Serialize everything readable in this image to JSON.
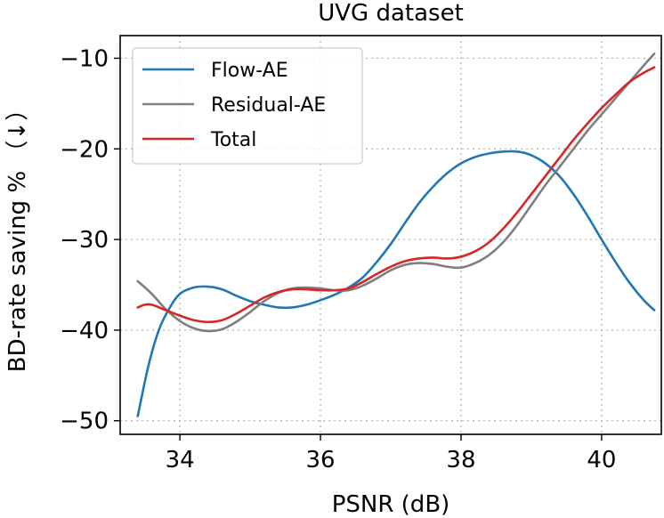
{
  "chart_data": {
    "type": "line",
    "title": "UVG dataset",
    "xlabel": "PSNR (dB)",
    "ylabel": "BD-rate saving % （↓）",
    "xlim": [
      33.15,
      40.85
    ],
    "ylim": [
      -51.5,
      -7.5
    ],
    "xticks": [
      34,
      36,
      38,
      40
    ],
    "yticks": [
      -10,
      -20,
      -30,
      -40,
      -50
    ],
    "xtick_labels": [
      "34",
      "36",
      "38",
      "40"
    ],
    "ytick_labels": [
      "−10",
      "−20",
      "−30",
      "−40",
      "−50"
    ],
    "grid": true,
    "legend_position": "top-left",
    "series": [
      {
        "name": "Flow-AE",
        "color": "#1f77b4",
        "points": [
          [
            33.4,
            -49.5
          ],
          [
            33.55,
            -44
          ],
          [
            33.7,
            -40
          ],
          [
            33.85,
            -37.6
          ],
          [
            34.0,
            -36.0
          ],
          [
            34.2,
            -35.3
          ],
          [
            34.4,
            -35.2
          ],
          [
            34.6,
            -35.5
          ],
          [
            34.8,
            -36.2
          ],
          [
            35.0,
            -36.8
          ],
          [
            35.2,
            -37.2
          ],
          [
            35.4,
            -37.5
          ],
          [
            35.6,
            -37.5
          ],
          [
            35.8,
            -37.2
          ],
          [
            36.0,
            -36.7
          ],
          [
            36.2,
            -36.1
          ],
          [
            36.4,
            -35.3
          ],
          [
            36.6,
            -34.2
          ],
          [
            36.8,
            -32.5
          ],
          [
            37.0,
            -30.5
          ],
          [
            37.2,
            -28.2
          ],
          [
            37.4,
            -26.0
          ],
          [
            37.6,
            -24.2
          ],
          [
            37.8,
            -22.7
          ],
          [
            38.0,
            -21.6
          ],
          [
            38.2,
            -20.9
          ],
          [
            38.4,
            -20.5
          ],
          [
            38.6,
            -20.3
          ],
          [
            38.8,
            -20.3
          ],
          [
            39.0,
            -20.7
          ],
          [
            39.2,
            -21.6
          ],
          [
            39.4,
            -23.0
          ],
          [
            39.6,
            -25.0
          ],
          [
            39.8,
            -27.4
          ],
          [
            40.0,
            -30.0
          ],
          [
            40.2,
            -32.5
          ],
          [
            40.4,
            -34.8
          ],
          [
            40.6,
            -36.7
          ],
          [
            40.75,
            -37.8
          ]
        ]
      },
      {
        "name": "Residual-AE",
        "color": "#7f7f7f",
        "points": [
          [
            33.4,
            -34.6
          ],
          [
            33.6,
            -36.0
          ],
          [
            33.8,
            -37.7
          ],
          [
            34.0,
            -39.0
          ],
          [
            34.2,
            -39.8
          ],
          [
            34.4,
            -40.1
          ],
          [
            34.6,
            -39.9
          ],
          [
            34.8,
            -39.1
          ],
          [
            35.0,
            -38.0
          ],
          [
            35.2,
            -36.8
          ],
          [
            35.4,
            -35.9
          ],
          [
            35.6,
            -35.4
          ],
          [
            35.8,
            -35.3
          ],
          [
            36.0,
            -35.4
          ],
          [
            36.2,
            -35.6
          ],
          [
            36.4,
            -35.6
          ],
          [
            36.6,
            -35.1
          ],
          [
            36.8,
            -34.3
          ],
          [
            37.0,
            -33.4
          ],
          [
            37.2,
            -32.8
          ],
          [
            37.4,
            -32.6
          ],
          [
            37.6,
            -32.7
          ],
          [
            37.8,
            -33.0
          ],
          [
            38.0,
            -33.1
          ],
          [
            38.2,
            -32.6
          ],
          [
            38.4,
            -31.7
          ],
          [
            38.6,
            -30.3
          ],
          [
            38.8,
            -28.4
          ],
          [
            39.0,
            -26.2
          ],
          [
            39.2,
            -24.0
          ],
          [
            39.4,
            -22.0
          ],
          [
            39.6,
            -20.0
          ],
          [
            39.8,
            -18.0
          ],
          [
            40.0,
            -16.2
          ],
          [
            40.2,
            -14.4
          ],
          [
            40.4,
            -12.6
          ],
          [
            40.6,
            -10.8
          ],
          [
            40.75,
            -9.5
          ]
        ]
      },
      {
        "name": "Total",
        "color": "#d62728",
        "points": [
          [
            33.4,
            -37.5
          ],
          [
            33.5,
            -37.2
          ],
          [
            33.6,
            -37.2
          ],
          [
            33.8,
            -37.8
          ],
          [
            34.0,
            -38.4
          ],
          [
            34.2,
            -38.9
          ],
          [
            34.4,
            -39.1
          ],
          [
            34.6,
            -38.9
          ],
          [
            34.8,
            -38.2
          ],
          [
            35.0,
            -37.3
          ],
          [
            35.2,
            -36.4
          ],
          [
            35.4,
            -35.8
          ],
          [
            35.6,
            -35.5
          ],
          [
            35.8,
            -35.5
          ],
          [
            36.0,
            -35.6
          ],
          [
            36.2,
            -35.6
          ],
          [
            36.4,
            -35.4
          ],
          [
            36.6,
            -34.7
          ],
          [
            36.8,
            -33.8
          ],
          [
            37.0,
            -33.0
          ],
          [
            37.2,
            -32.4
          ],
          [
            37.4,
            -32.1
          ],
          [
            37.6,
            -32.0
          ],
          [
            37.8,
            -32.1
          ],
          [
            38.0,
            -31.9
          ],
          [
            38.2,
            -31.3
          ],
          [
            38.4,
            -30.3
          ],
          [
            38.6,
            -28.8
          ],
          [
            38.8,
            -27.0
          ],
          [
            39.0,
            -25.0
          ],
          [
            39.2,
            -23.0
          ],
          [
            39.4,
            -21.0
          ],
          [
            39.6,
            -19.0
          ],
          [
            39.8,
            -17.2
          ],
          [
            40.0,
            -15.5
          ],
          [
            40.2,
            -14.0
          ],
          [
            40.4,
            -12.6
          ],
          [
            40.6,
            -11.6
          ],
          [
            40.75,
            -11.0
          ]
        ]
      }
    ]
  }
}
